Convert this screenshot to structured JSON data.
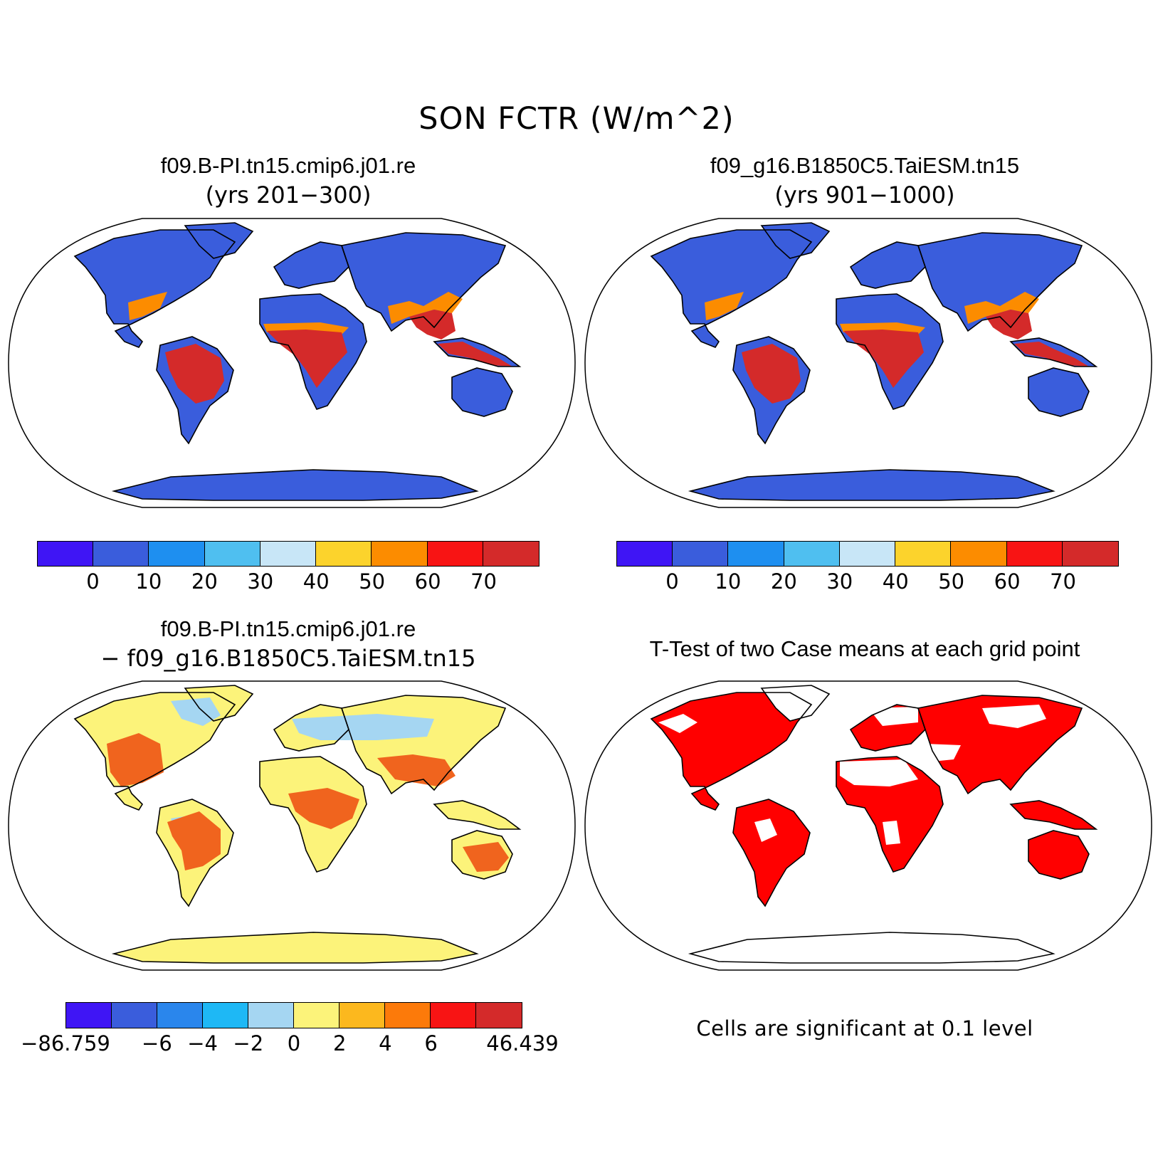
{
  "figure": {
    "title": "SON FCTR (W/m^2)"
  },
  "panels": {
    "case1": {
      "title": "f09.B-PI.tn15.cmip6.j01.re",
      "subtitle": "(yrs 201−300)"
    },
    "case2": {
      "title": "f09_g16.B1850C5.TaiESM.tn15",
      "subtitle": "(yrs 901−1000)"
    },
    "diff": {
      "title": "f09.B-PI.tn15.cmip6.j01.re",
      "subtitle": "− f09_g16.B1850C5.TaiESM.tn15"
    },
    "ttest": {
      "title": "T-Test of two Case means at each grid point",
      "note": "Cells are significant at 0.1 level"
    }
  },
  "colorbars": {
    "absolute": {
      "colors": [
        "#3f15f5",
        "#3a5ddc",
        "#1e8ff0",
        "#4fbff0",
        "#c8e6f7",
        "#fcd32c",
        "#fc8c00",
        "#f81414",
        "#d42a2a"
      ],
      "ticks": [
        "0",
        "10",
        "20",
        "30",
        "40",
        "50",
        "60",
        "70"
      ]
    },
    "difference": {
      "colors": [
        "#3f15f5",
        "#3a5ddc",
        "#2a86ec",
        "#1eb8f5",
        "#a5d6f2",
        "#fcf37a",
        "#fcb81e",
        "#fc7a0a",
        "#f81414",
        "#d42a2a"
      ],
      "ticks": [
        "−86.759",
        "−6",
        "−4",
        "−2",
        "0",
        "2",
        "4",
        "6",
        "46.439"
      ]
    }
  },
  "map_style": {
    "land_case": "#3a5ddc",
    "tropics_case": "#d42a2a",
    "warm_case": "#fc8c00",
    "land_diff": "#fcf37a",
    "signif": "#ff0000",
    "coast": "#000000"
  }
}
